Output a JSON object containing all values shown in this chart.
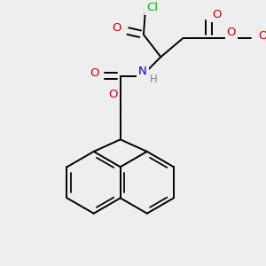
{
  "bg_color": "#eeeeee",
  "atom_colors": {
    "C": "#000000",
    "O": "#cc0000",
    "N": "#0000cc",
    "Cl": "#00bb00",
    "H": "#888888"
  },
  "bond_lw": 1.4,
  "font_size": 9.5,
  "font_size_small": 8.5
}
